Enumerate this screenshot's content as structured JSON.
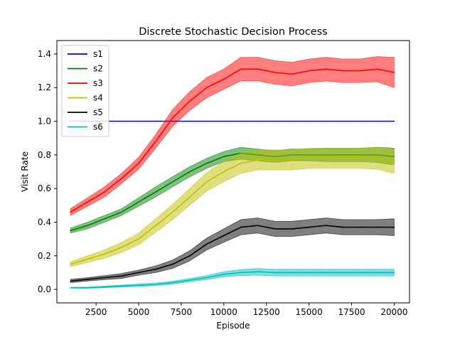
{
  "chart_data": {
    "type": "line",
    "title": "Discrete Stochastic Decision Process",
    "xlabel": "Episode",
    "ylabel": "Visit Rate",
    "xlim": [
      200,
      20900
    ],
    "ylim": [
      -0.08,
      1.48
    ],
    "xticks": [
      2500,
      5000,
      7500,
      10000,
      12500,
      15000,
      17500,
      20000
    ],
    "yticks": [
      0.0,
      0.2,
      0.4,
      0.6,
      0.8,
      1.0,
      1.2,
      1.4
    ],
    "xtick_labels": [
      "2500",
      "5000",
      "7500",
      "10000",
      "12500",
      "15000",
      "17500",
      "20000"
    ],
    "ytick_labels": [
      "0.0",
      "0.2",
      "0.4",
      "0.6",
      "0.8",
      "1.0",
      "1.2",
      "1.4"
    ],
    "grid": false,
    "legend_position": "upper-left",
    "x": [
      1000,
      2000,
      3000,
      4000,
      5000,
      6000,
      7000,
      8000,
      9000,
      10000,
      11000,
      12000,
      13000,
      14000,
      15000,
      16000,
      17000,
      18000,
      19000,
      20000
    ],
    "series": [
      {
        "name": "s1",
        "color": "#0000ff",
        "values": [
          1.0,
          1.0,
          1.0,
          1.0,
          1.0,
          1.0,
          1.0,
          1.0,
          1.0,
          1.0,
          1.0,
          1.0,
          1.0,
          1.0,
          1.0,
          1.0,
          1.0,
          1.0,
          1.0,
          1.0
        ],
        "spread": [
          0,
          0,
          0,
          0,
          0,
          0,
          0,
          0,
          0,
          0,
          0,
          0,
          0,
          0,
          0,
          0,
          0,
          0,
          0,
          0
        ]
      },
      {
        "name": "s2",
        "color": "#008000",
        "values": [
          0.35,
          0.38,
          0.42,
          0.46,
          0.52,
          0.58,
          0.64,
          0.7,
          0.75,
          0.79,
          0.81,
          0.8,
          0.79,
          0.8,
          0.8,
          0.8,
          0.8,
          0.8,
          0.8,
          0.79
        ],
        "spread": [
          0.015,
          0.02,
          0.02,
          0.02,
          0.025,
          0.03,
          0.03,
          0.03,
          0.03,
          0.03,
          0.035,
          0.035,
          0.035,
          0.035,
          0.035,
          0.04,
          0.04,
          0.04,
          0.045,
          0.05
        ]
      },
      {
        "name": "s3",
        "color": "#ff0000",
        "values": [
          0.46,
          0.52,
          0.58,
          0.66,
          0.75,
          0.88,
          1.02,
          1.12,
          1.2,
          1.25,
          1.31,
          1.31,
          1.29,
          1.28,
          1.3,
          1.31,
          1.3,
          1.3,
          1.31,
          1.29
        ],
        "spread": [
          0.02,
          0.025,
          0.03,
          0.03,
          0.035,
          0.04,
          0.05,
          0.055,
          0.06,
          0.06,
          0.07,
          0.07,
          0.07,
          0.07,
          0.07,
          0.07,
          0.07,
          0.07,
          0.075,
          0.09
        ]
      },
      {
        "name": "s4",
        "color": "#bfbf00",
        "values": [
          0.15,
          0.18,
          0.21,
          0.25,
          0.3,
          0.38,
          0.46,
          0.55,
          0.64,
          0.7,
          0.75,
          0.77,
          0.77,
          0.77,
          0.78,
          0.78,
          0.78,
          0.78,
          0.78,
          0.76
        ],
        "spread": [
          0.015,
          0.02,
          0.025,
          0.03,
          0.035,
          0.04,
          0.045,
          0.05,
          0.055,
          0.06,
          0.06,
          0.06,
          0.06,
          0.06,
          0.06,
          0.06,
          0.06,
          0.06,
          0.065,
          0.07
        ]
      },
      {
        "name": "s5",
        "color": "#000000",
        "values": [
          0.05,
          0.06,
          0.07,
          0.08,
          0.1,
          0.12,
          0.15,
          0.2,
          0.27,
          0.32,
          0.37,
          0.38,
          0.36,
          0.36,
          0.37,
          0.38,
          0.37,
          0.37,
          0.37,
          0.37
        ],
        "spread": [
          0.01,
          0.01,
          0.012,
          0.015,
          0.015,
          0.02,
          0.025,
          0.03,
          0.035,
          0.04,
          0.045,
          0.045,
          0.045,
          0.045,
          0.045,
          0.045,
          0.045,
          0.045,
          0.045,
          0.05
        ]
      },
      {
        "name": "s6",
        "color": "#00bfbf",
        "values": [
          0.01,
          0.01,
          0.015,
          0.02,
          0.025,
          0.03,
          0.04,
          0.055,
          0.07,
          0.09,
          0.1,
          0.105,
          0.1,
          0.1,
          0.1,
          0.1,
          0.1,
          0.1,
          0.1,
          0.1
        ],
        "spread": [
          0.003,
          0.004,
          0.005,
          0.006,
          0.007,
          0.008,
          0.009,
          0.01,
          0.012,
          0.015,
          0.018,
          0.02,
          0.02,
          0.02,
          0.02,
          0.02,
          0.02,
          0.02,
          0.02,
          0.02
        ]
      }
    ]
  }
}
